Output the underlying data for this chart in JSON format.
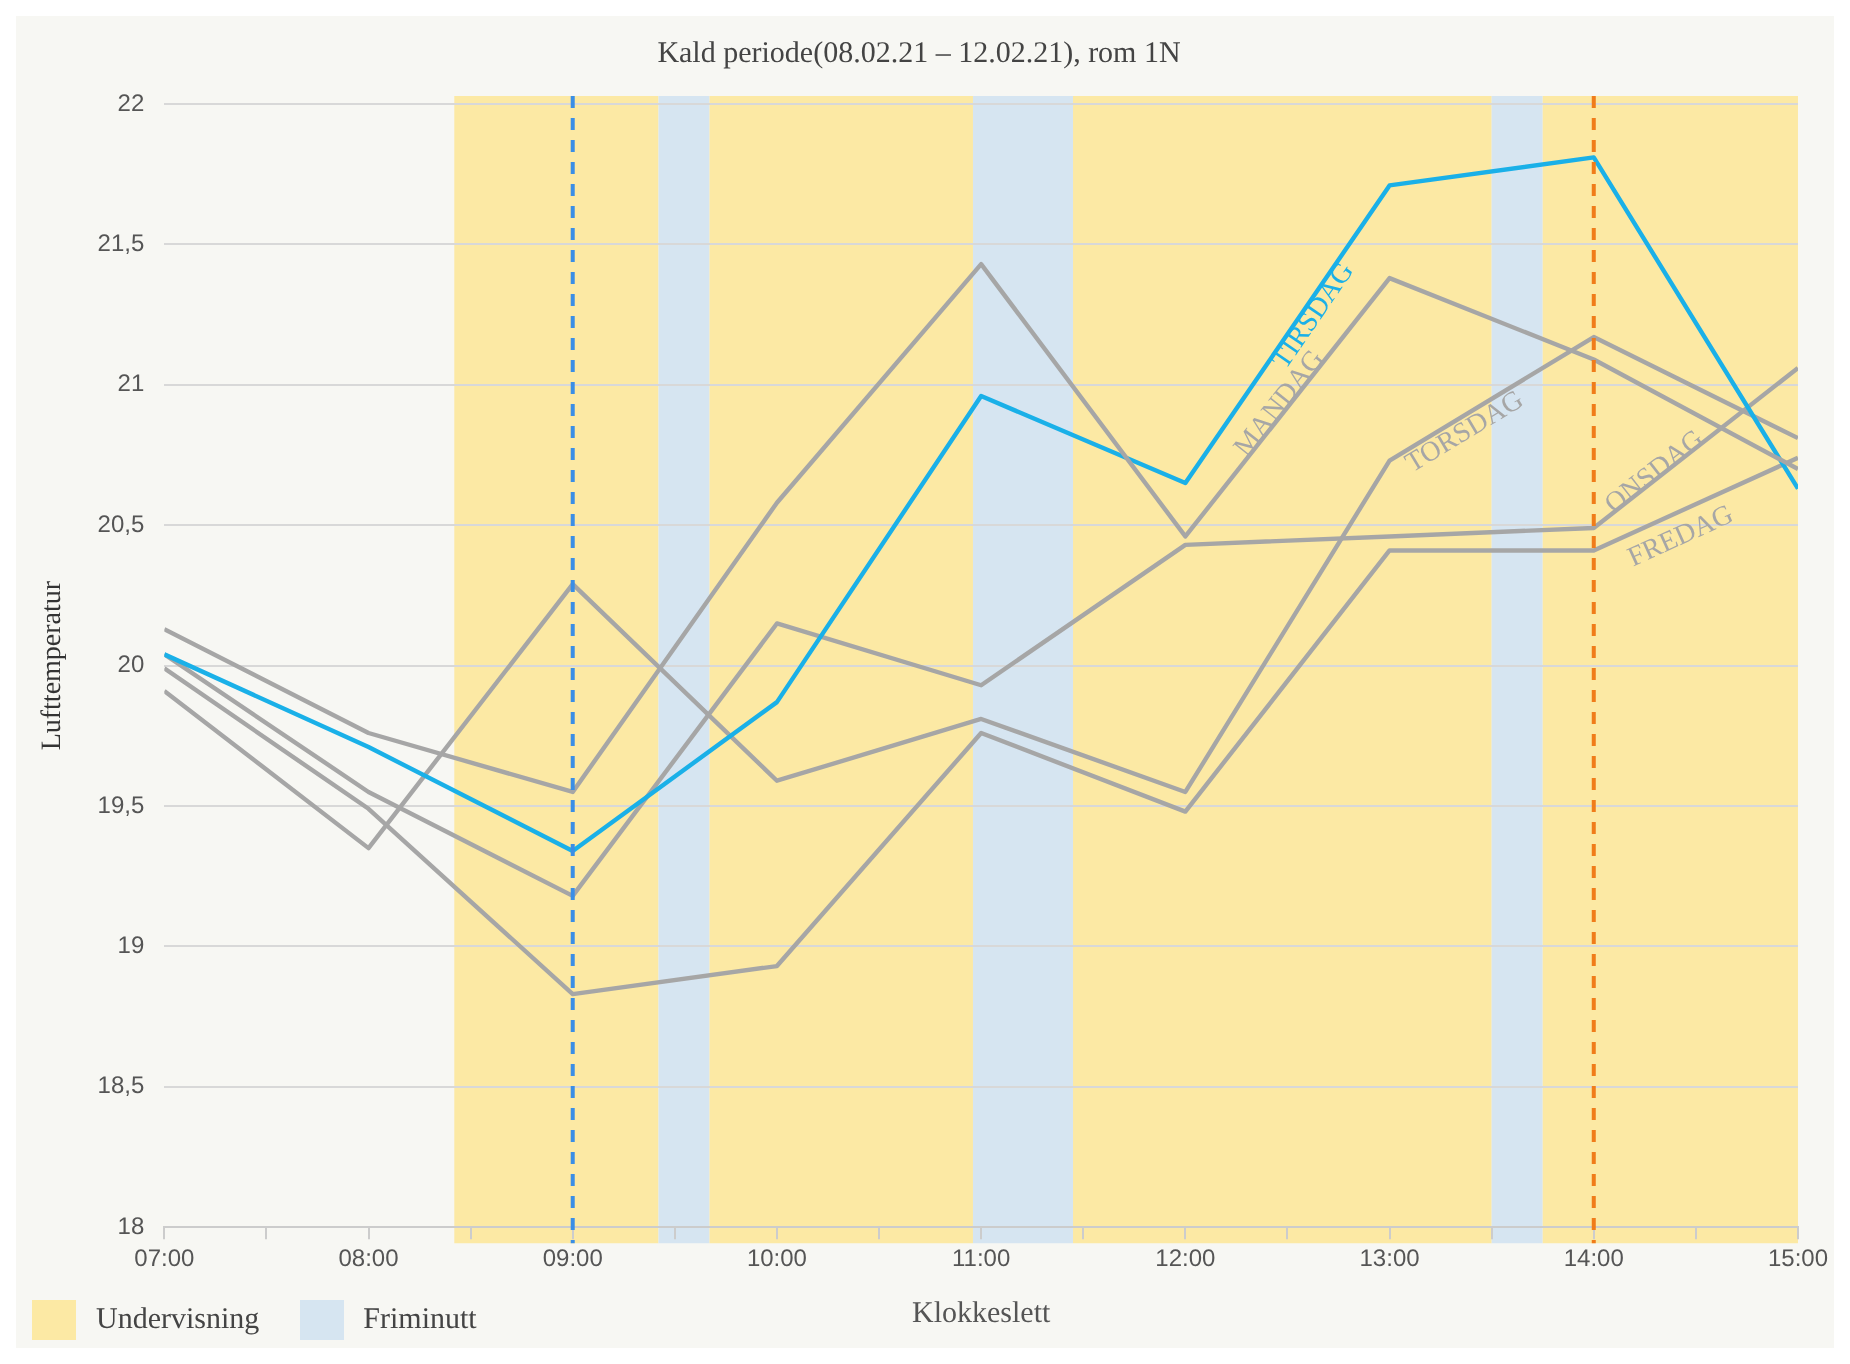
{
  "chart_data": {
    "type": "line",
    "title": "Kald periode(08.02.21 – 12.02.21), rom 1N",
    "xlabel": "Klokkeslett",
    "ylabel": "Lufttemperatur",
    "x": [
      7,
      8,
      9,
      10,
      11,
      12,
      13,
      14,
      15
    ],
    "series": [
      {
        "name": "MANDAG",
        "color": "#a6a6a6",
        "values": [
          20.13,
          19.76,
          19.55,
          20.58,
          21.43,
          20.46,
          21.38,
          21.09,
          20.7
        ]
      },
      {
        "name": "TIRSDAG",
        "color": "#1ab0e8",
        "values": [
          20.04,
          19.71,
          19.34,
          19.87,
          20.96,
          20.65,
          21.71,
          21.81,
          20.63
        ]
      },
      {
        "name": "ONSDAG",
        "color": "#a6a6a6",
        "values": [
          20.04,
          19.55,
          19.18,
          20.15,
          19.93,
          20.43,
          20.46,
          20.49,
          21.06
        ]
      },
      {
        "name": "TORSDAG",
        "color": "#a6a6a6",
        "values": [
          19.91,
          19.35,
          20.29,
          19.59,
          19.81,
          19.55,
          20.73,
          21.17,
          20.81
        ]
      },
      {
        "name": "FREDAG",
        "color": "#a6a6a6",
        "values": [
          19.99,
          19.49,
          18.83,
          18.93,
          19.76,
          19.48,
          20.41,
          20.41,
          20.74
        ]
      }
    ],
    "xlim": [
      7,
      15
    ],
    "xticks": [
      {
        "value": 7,
        "label": "07:00"
      },
      {
        "value": 7.5,
        "label": null
      },
      {
        "value": 8,
        "label": "08:00"
      },
      {
        "value": 8.5,
        "label": null
      },
      {
        "value": 9,
        "label": "09:00"
      },
      {
        "value": 9.5,
        "label": null
      },
      {
        "value": 10,
        "label": "10:00"
      },
      {
        "value": 10.5,
        "label": null
      },
      {
        "value": 11,
        "label": "11:00"
      },
      {
        "value": 11.5,
        "label": null
      },
      {
        "value": 12,
        "label": "12:00"
      },
      {
        "value": 12.5,
        "label": null
      },
      {
        "value": 13,
        "label": "13:00"
      },
      {
        "value": 13.5,
        "label": null
      },
      {
        "value": 14,
        "label": "14:00"
      },
      {
        "value": 14.5,
        "label": null
      },
      {
        "value": 15,
        "label": "15:00"
      }
    ],
    "ylim": [
      18,
      22
    ],
    "yticks": [
      18,
      {
        "value": 18.5,
        "label": "18,5"
      },
      19,
      {
        "value": 19.5,
        "label": "19,5"
      },
      20,
      {
        "value": 20.5,
        "label": "20,5"
      },
      21,
      {
        "value": 21.5,
        "label": "21,5"
      },
      22
    ],
    "bands": [
      {
        "axis": "x",
        "from": 8.42,
        "to": 9.42,
        "label": "Undervisning",
        "color": "#fce9a4"
      },
      {
        "axis": "x",
        "from": 9.42,
        "to": 9.67,
        "label": "Friminutt",
        "color": "#d6e5f1"
      },
      {
        "axis": "x",
        "from": 9.67,
        "to": 10.96,
        "color": "#fce9a4"
      },
      {
        "axis": "x",
        "from": 10.96,
        "to": 11.45,
        "color": "#d6e5f1"
      },
      {
        "axis": "x",
        "from": 11.45,
        "to": 13.5,
        "color": "#fce9a4"
      },
      {
        "axis": "x",
        "from": 13.5,
        "to": 13.75,
        "color": "#d6e5f1"
      },
      {
        "axis": "x",
        "from": 13.75,
        "to": 15,
        "color": "#fce9a4"
      }
    ],
    "ref_lines": [
      {
        "axis": "x",
        "value": 9,
        "color": "#3a8ee6",
        "line_style": "dashed"
      },
      {
        "axis": "x",
        "value": 14,
        "color": "#f07c1a",
        "line_style": "dashed"
      }
    ],
    "grid": "y",
    "legend": "bottom left",
    "marker": "none",
    "line_style": "solid"
  }
}
